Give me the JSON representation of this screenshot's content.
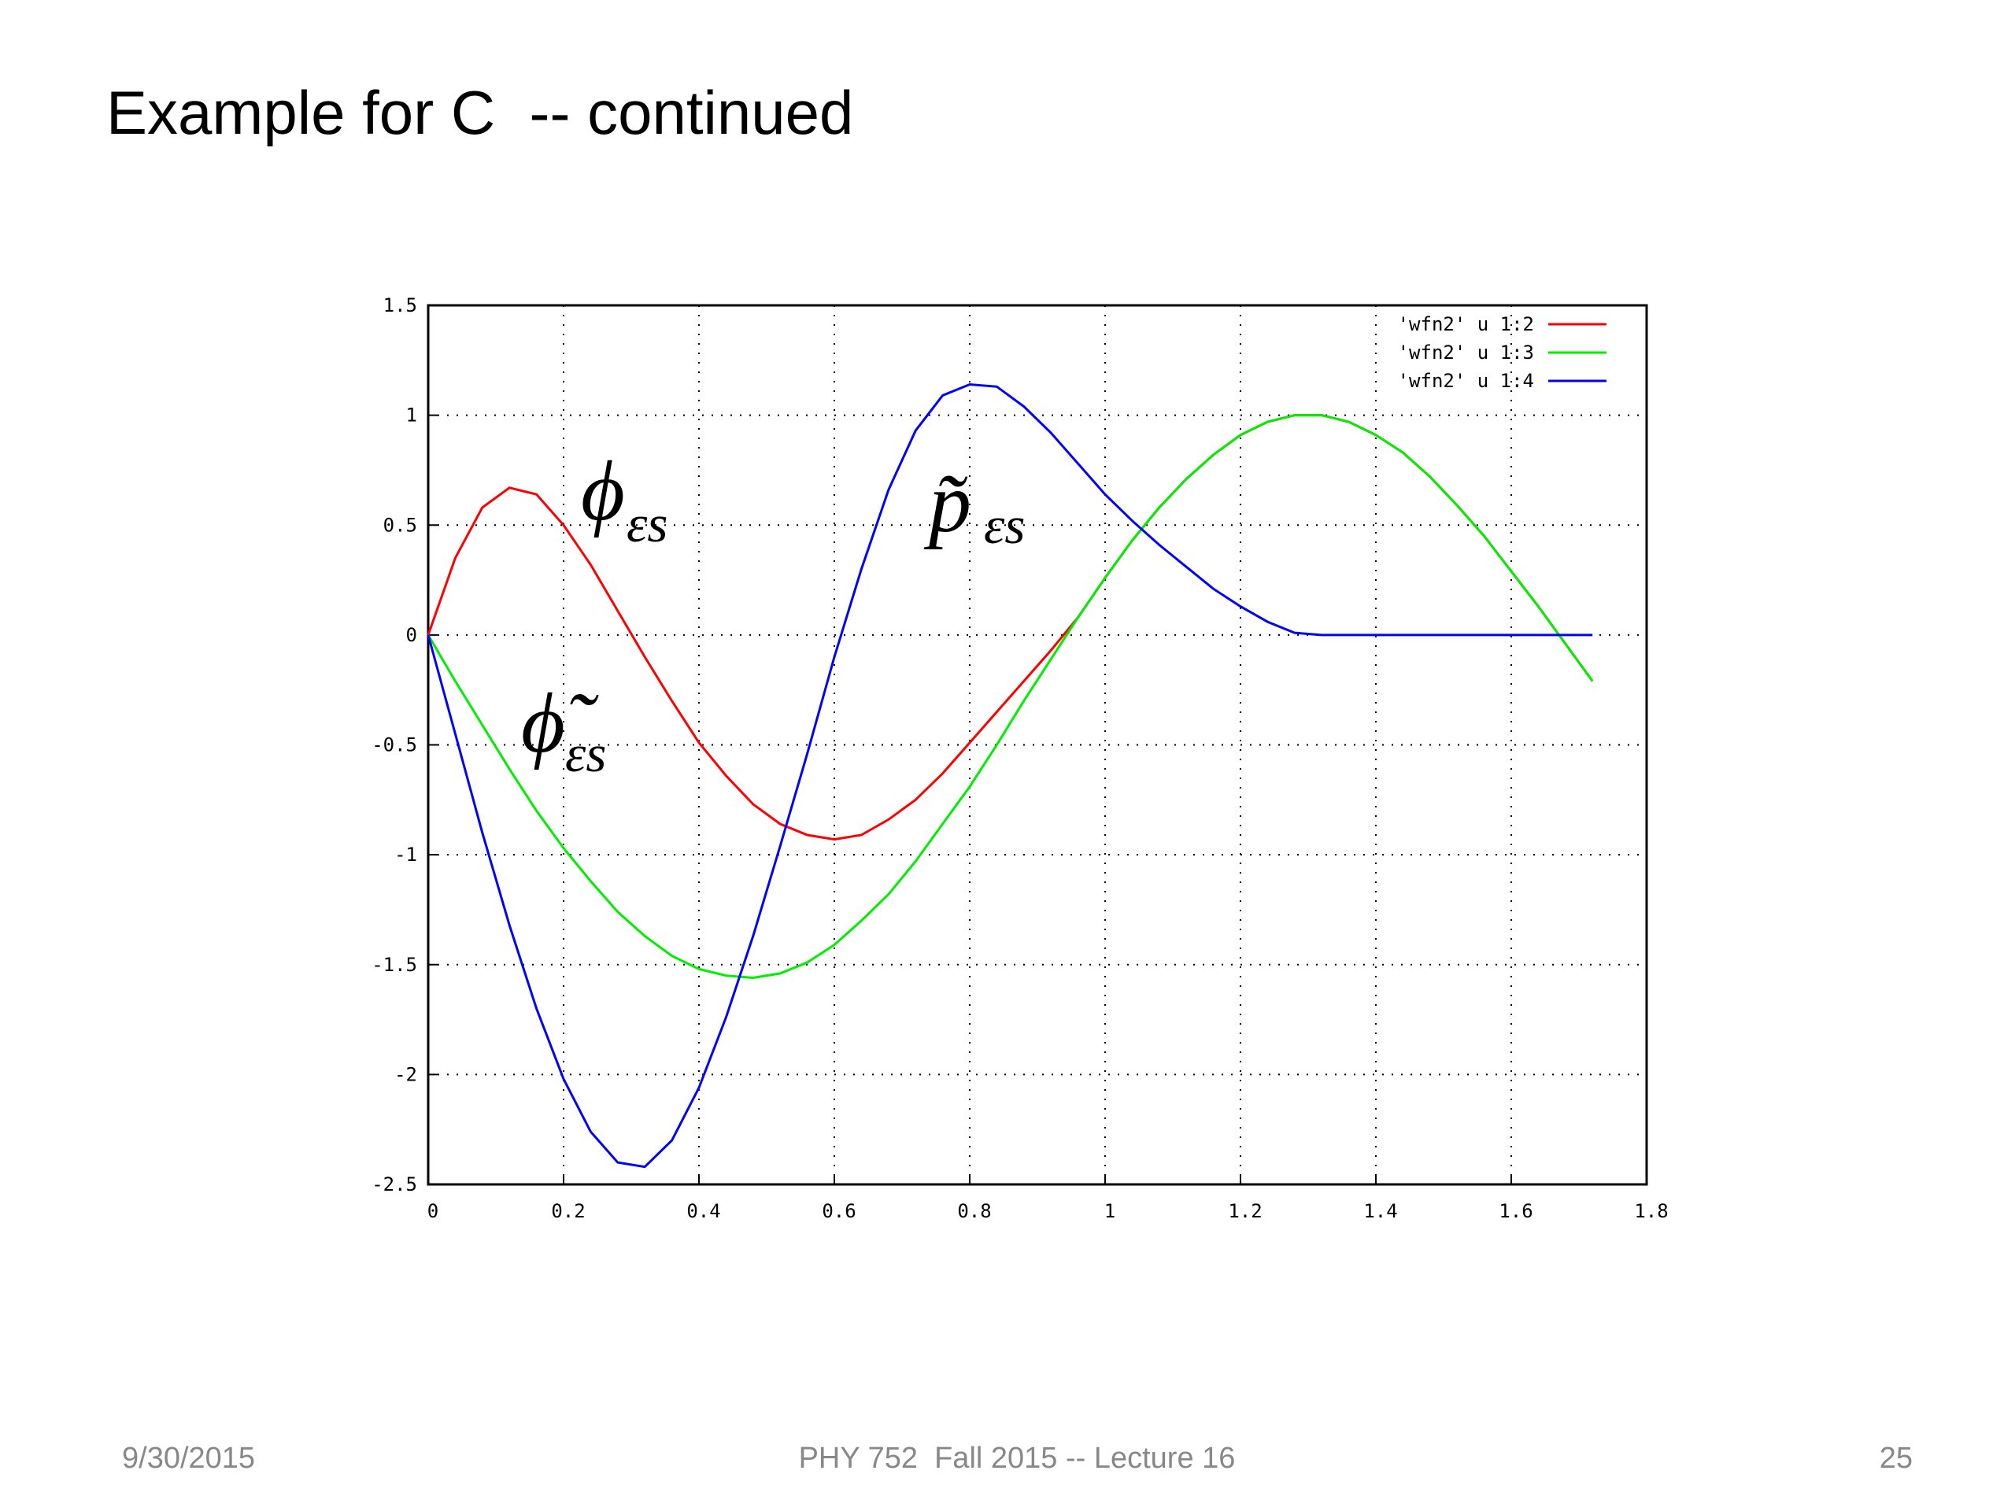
{
  "slide": {
    "title": "Example for C  -- continued",
    "footer": {
      "date": "9/30/2015",
      "center": "PHY 752  Fall 2015 -- Lecture 16",
      "page": "25"
    }
  },
  "chart_data": {
    "type": "line",
    "grid": true,
    "legend": "top-right",
    "x": [
      0,
      0.04,
      0.08,
      0.12,
      0.16,
      0.2,
      0.24,
      0.28,
      0.32,
      0.36,
      0.4,
      0.44,
      0.48,
      0.52,
      0.56,
      0.6,
      0.64,
      0.68,
      0.72,
      0.76,
      0.8,
      0.84,
      0.88,
      0.92,
      0.96,
      1.0,
      1.04,
      1.08,
      1.12,
      1.16,
      1.2,
      1.24,
      1.28,
      1.32,
      1.36,
      1.4,
      1.44,
      1.48,
      1.52,
      1.56,
      1.6,
      1.64,
      1.68,
      1.72
    ],
    "series": [
      {
        "name": "'wfn2' u 1:2",
        "color": "#ff0000",
        "values": [
          0,
          0.35,
          0.58,
          0.67,
          0.64,
          0.5,
          0.32,
          0.11,
          -0.1,
          -0.3,
          -0.49,
          -0.64,
          -0.77,
          -0.86,
          -0.91,
          -0.93,
          -0.91,
          -0.84,
          -0.75,
          -0.63,
          -0.49,
          -0.35,
          -0.21,
          -0.07,
          0.08,
          0.26,
          0.43,
          0.58,
          0.71,
          0.82,
          0.91,
          0.97,
          1.0,
          1.0,
          0.97,
          0.91,
          0.83,
          0.72,
          0.59,
          0.45,
          0.29,
          0.13,
          -0.04,
          -0.21
        ]
      },
      {
        "name": "'wfn2' u 1:3",
        "color": "#00ee00",
        "values": [
          0,
          -0.21,
          -0.41,
          -0.61,
          -0.8,
          -0.97,
          -1.12,
          -1.26,
          -1.37,
          -1.46,
          -1.52,
          -1.55,
          -1.56,
          -1.54,
          -1.49,
          -1.41,
          -1.3,
          -1.18,
          -1.03,
          -0.86,
          -0.69,
          -0.5,
          -0.3,
          -0.11,
          0.08,
          0.26,
          0.43,
          0.58,
          0.71,
          0.82,
          0.91,
          0.97,
          1.0,
          1.0,
          0.97,
          0.91,
          0.83,
          0.72,
          0.59,
          0.45,
          0.29,
          0.13,
          -0.04,
          -0.21
        ]
      },
      {
        "name": "'wfn2' u 1:4",
        "color": "#0000ff",
        "values": [
          0,
          -0.45,
          -0.9,
          -1.32,
          -1.7,
          -2.02,
          -2.26,
          -2.4,
          -2.42,
          -2.3,
          -2.06,
          -1.74,
          -1.37,
          -0.96,
          -0.54,
          -0.1,
          0.3,
          0.66,
          0.93,
          1.09,
          1.14,
          1.13,
          1.04,
          0.92,
          0.78,
          0.64,
          0.52,
          0.41,
          0.31,
          0.21,
          0.13,
          0.06,
          0.01,
          0,
          0,
          0,
          0,
          0,
          0,
          0,
          0,
          0,
          0,
          0
        ]
      }
    ],
    "xlim": [
      0,
      1.8
    ],
    "xticks": [
      0,
      0.2,
      0.4,
      0.6,
      0.8,
      1,
      1.2,
      1.4,
      1.6,
      1.8
    ],
    "ylim": [
      -2.5,
      1.5
    ],
    "yticks": [
      -2.5,
      -2,
      -1.5,
      -1,
      -0.5,
      0,
      0.5,
      1,
      1.5
    ],
    "annotations": [
      {
        "text": "ϕ",
        "subscript": "εs"
      },
      {
        "text": "ϕ̃",
        "subscript": "εs"
      },
      {
        "text": "p̃",
        "subscript": "εs"
      }
    ]
  }
}
